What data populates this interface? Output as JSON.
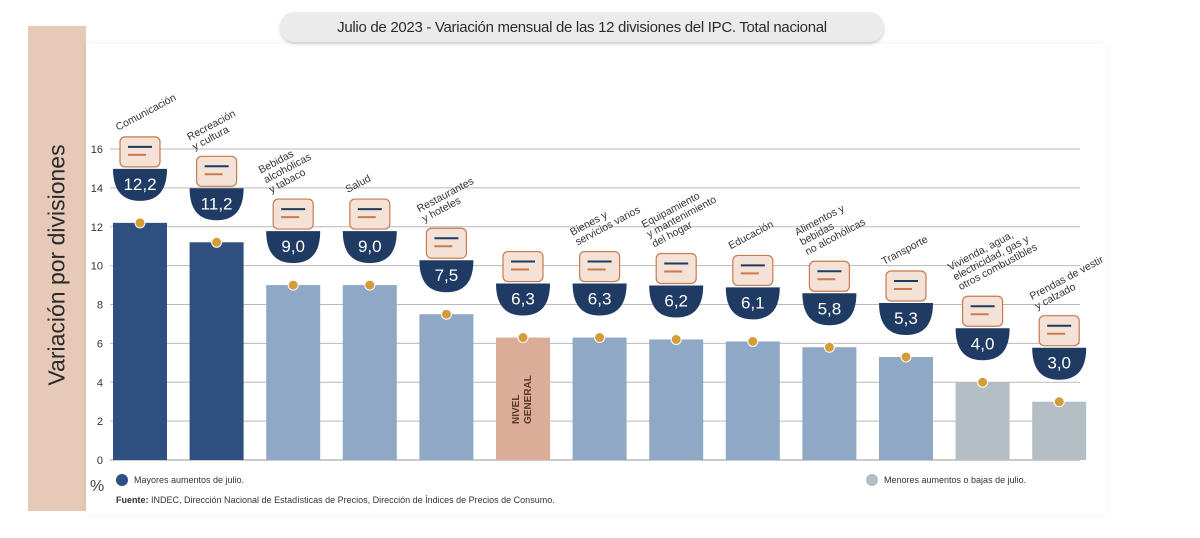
{
  "title": "Julio de 2023 - Variación mensual de las 12 divisiones del IPC. Total nacional",
  "y_axis_label": "Variación por divisiones",
  "unit_symbol": "%",
  "legend": {
    "high": "Mayores aumentos de julio.",
    "low": "Menores aumentos o bajas de julio."
  },
  "source": {
    "prefix": "Fuente:",
    "text": "INDEC, Dirección Nacional de Estadísticas de Precios, Dirección de Índices de Precios de Consumo."
  },
  "colors": {
    "dark": "#2e4f7f",
    "mid": "#8fa8c6",
    "light": "#b3bec5",
    "general": "#dbac98",
    "badge": "#1f3a63",
    "marker": "#d59c3a",
    "grid": "#b9b9b9"
  },
  "chart_data": {
    "type": "bar",
    "title": "Julio de 2023 - Variación mensual de las 12 divisiones del IPC. Total nacional",
    "ylabel": "Variación por divisiones",
    "ylim": [
      0,
      16
    ],
    "yticks": [
      "0",
      "2",
      "4",
      "6",
      "8",
      "10",
      "12",
      "14",
      "16"
    ],
    "categories": [
      {
        "name": "Comunicación",
        "lines": [
          "Comunicación"
        ],
        "value": 12.2,
        "label": "12,2",
        "group": "dark",
        "icon": "phone-icon"
      },
      {
        "name": "Recreación y cultura",
        "lines": [
          "Recreación",
          "y cultura"
        ],
        "value": 11.2,
        "label": "11,2",
        "group": "dark",
        "icon": "umbrella-icon"
      },
      {
        "name": "Bebidas alcohólicas y tabaco",
        "lines": [
          "Bebidas",
          "alcohólicas",
          "y tabaco"
        ],
        "value": 9.0,
        "label": "9,0",
        "group": "mid",
        "icon": "bottle-icon"
      },
      {
        "name": "Salud",
        "lines": [
          "Salud"
        ],
        "value": 9.0,
        "label": "9,0",
        "group": "mid",
        "icon": "first-aid-icon"
      },
      {
        "name": "Restaurantes y hoteles",
        "lines": [
          "Restaurantes",
          "y hoteles"
        ],
        "value": 7.5,
        "label": "7,5",
        "group": "mid",
        "icon": "plate-icon"
      },
      {
        "name": "Nivel general",
        "lines": [],
        "bar_text": [
          "NIVEL",
          "GENERAL"
        ],
        "value": 6.3,
        "label": "6,3",
        "group": "general",
        "icon": "basket-icon"
      },
      {
        "name": "Bienes y servicios varios",
        "lines": [
          "Bienes y",
          "servicios varios"
        ],
        "value": 6.3,
        "label": "6,3",
        "group": "mid",
        "icon": "scissors-icon"
      },
      {
        "name": "Equipamiento y mantenimiento del hogar",
        "lines": [
          "Equipamiento",
          "y mantenimiento",
          "del hogar"
        ],
        "value": 6.2,
        "label": "6,2",
        "group": "mid",
        "icon": "washer-icon"
      },
      {
        "name": "Educación",
        "lines": [
          "Educación"
        ],
        "value": 6.1,
        "label": "6,1",
        "group": "mid",
        "icon": "books-icon"
      },
      {
        "name": "Alimentos y bebidas no alcohólicas",
        "lines": [
          "Alimentos y",
          "bebidas",
          "no alcohólicas"
        ],
        "value": 5.8,
        "label": "5,8",
        "group": "mid",
        "icon": "bread-icon"
      },
      {
        "name": "Transporte",
        "lines": [
          "Transporte"
        ],
        "value": 5.3,
        "label": "5,3",
        "group": "mid",
        "icon": "bus-icon"
      },
      {
        "name": "Vivienda, agua, electricidad, gas y otros combustibles",
        "lines": [
          "Vivienda, agua,",
          "electricidad, gas y",
          "otros combustibles"
        ],
        "value": 4.0,
        "label": "4,0",
        "group": "light",
        "icon": "bulb-icon"
      },
      {
        "name": "Prendas de vestir y calzado",
        "lines": [
          "Prendas de vestir",
          "y calzado"
        ],
        "value": 3.0,
        "label": "3,0",
        "group": "light",
        "icon": "shirt-icon"
      }
    ]
  }
}
